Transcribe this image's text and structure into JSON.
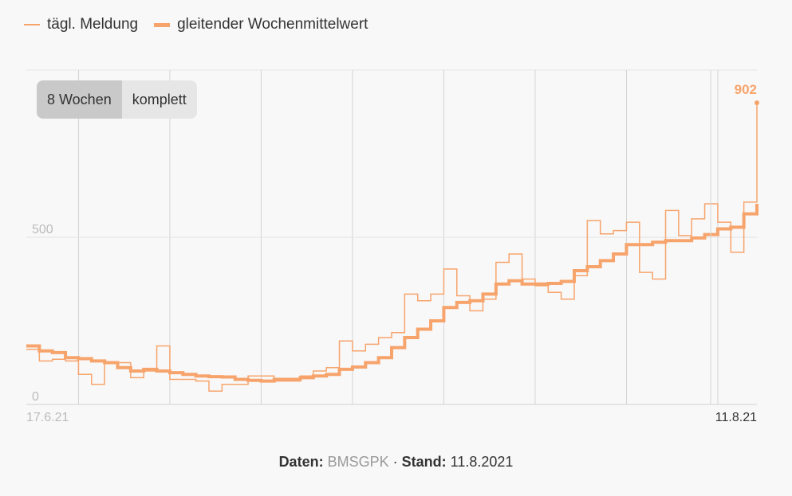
{
  "legend": {
    "daily_label": "tägl. Meldung",
    "avg_label": "gleitender Wochenmittelwert"
  },
  "toggle": {
    "options": [
      "8 Wochen",
      "komplett"
    ],
    "selected": "8 Wochen"
  },
  "footer": {
    "data_label": "Daten:",
    "source": "BMSGPK",
    "separator": "·",
    "stand_label": "Stand:",
    "stand_value": "11.8.2021"
  },
  "colors": {
    "series": "#f7a46c",
    "grid": "#d4d4d4",
    "tick_label": "#bbbbbb"
  },
  "chart_data": {
    "type": "line",
    "step": true,
    "x_start": "2021-06-17",
    "x_end": "2021-08-11",
    "x_tick_labels": [
      "17.6.21",
      "11.8.21"
    ],
    "y_ticks": [
      0,
      500
    ],
    "ylim": [
      0,
      1000
    ],
    "last_value_label": "902",
    "series": [
      {
        "name": "tägl. Meldung",
        "style": "thin",
        "values": [
          165,
          130,
          135,
          130,
          90,
          60,
          125,
          125,
          80,
          100,
          175,
          75,
          75,
          70,
          40,
          60,
          60,
          85,
          85,
          70,
          70,
          85,
          100,
          110,
          190,
          160,
          180,
          200,
          215,
          330,
          310,
          330,
          405,
          325,
          280,
          315,
          425,
          450,
          375,
          355,
          335,
          315,
          385,
          550,
          510,
          520,
          545,
          395,
          375,
          580,
          505,
          555,
          600,
          545,
          455,
          605,
          902
        ]
      },
      {
        "name": "gleitender Wochenmittelwert",
        "style": "thick",
        "values": [
          175,
          160,
          155,
          140,
          137,
          130,
          125,
          110,
          100,
          105,
          100,
          95,
          90,
          85,
          83,
          82,
          75,
          72,
          70,
          75,
          75,
          80,
          85,
          90,
          105,
          112,
          125,
          140,
          170,
          200,
          225,
          250,
          290,
          305,
          310,
          330,
          360,
          370,
          360,
          360,
          362,
          368,
          400,
          412,
          430,
          450,
          478,
          478,
          485,
          490,
          490,
          498,
          508,
          525,
          530,
          570,
          600
        ]
      }
    ]
  }
}
